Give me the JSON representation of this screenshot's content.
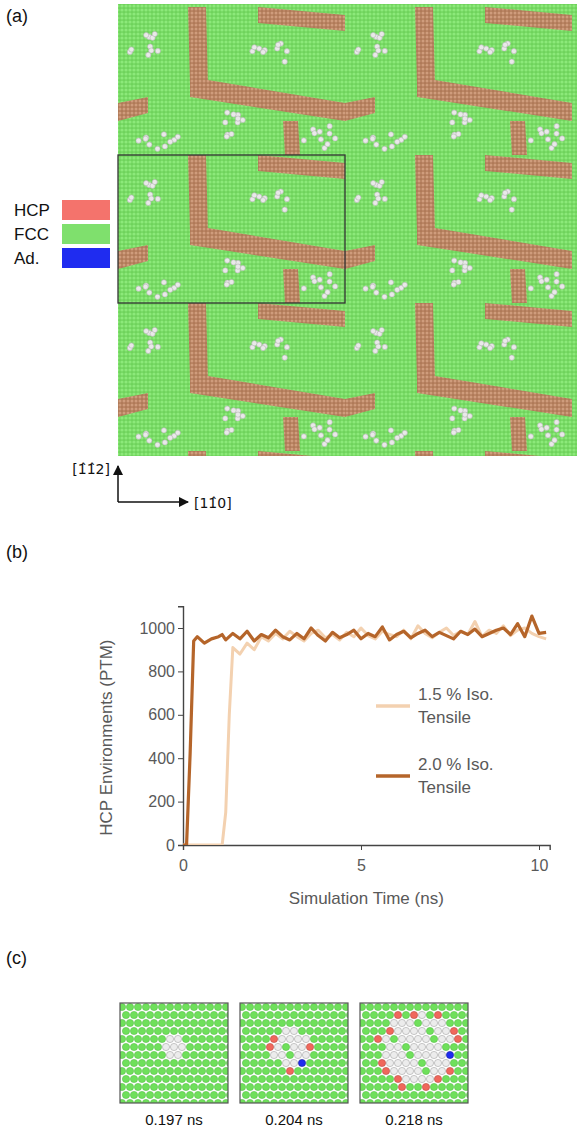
{
  "figure": {
    "panels": [
      "(a)",
      "(b)",
      "(c)"
    ],
    "legend_a": [
      {
        "label": "HCP",
        "color": "#f4736c"
      },
      {
        "label": "FCC",
        "color": "#7fe06d"
      },
      {
        "label": "Ad.",
        "color": "#1f2cf0"
      }
    ],
    "directions": {
      "vertical": "[1̂1̂2]",
      "horizontal": "[11̂0]"
    },
    "snapshots": [
      "0.197 ns",
      "0.204 ns",
      "0.218 ns"
    ]
  },
  "chart_data": {
    "type": "line",
    "xlabel": "Simulation Time (ns)",
    "ylabel": "HCP Environments (PTM)",
    "x": [
      0,
      0.1,
      0.2,
      0.3,
      0.4,
      0.6,
      0.8,
      1.0,
      1.1,
      1.2,
      1.3,
      1.4,
      1.6,
      1.8,
      2.0,
      2.2,
      2.4,
      2.6,
      2.8,
      3.0,
      3.2,
      3.4,
      3.6,
      3.8,
      4.0,
      4.2,
      4.4,
      4.6,
      4.8,
      5.0,
      5.2,
      5.4,
      5.6,
      5.8,
      6.0,
      6.2,
      6.4,
      6.6,
      6.8,
      7.0,
      7.2,
      7.4,
      7.6,
      7.8,
      8.0,
      8.2,
      8.4,
      8.6,
      8.8,
      9.0,
      9.2,
      9.4,
      9.6,
      9.8,
      10.0,
      10.2
    ],
    "series": [
      {
        "name": "1.5 % Iso. Tensile",
        "color": "#f3d1b0",
        "values": [
          0,
          0,
          0,
          0,
          0,
          0,
          0,
          0,
          0,
          150,
          600,
          910,
          880,
          930,
          900,
          960,
          940,
          975,
          950,
          985,
          960,
          940,
          975,
          990,
          955,
          970,
          945,
          980,
          960,
          1000,
          965,
          950,
          985,
          970,
          960,
          990,
          950,
          1010,
          975,
          955,
          980,
          1000,
          965,
          985,
          970,
          1030,
          960,
          990,
          975,
          1010,
          965,
          990,
          1000,
          975,
          960,
          950
        ]
      },
      {
        "name": "2.0 % Iso. Tensile",
        "color": "#b5652a",
        "values": [
          0,
          0,
          420,
          940,
          960,
          930,
          950,
          960,
          970,
          945,
          960,
          975,
          950,
          985,
          940,
          970,
          955,
          990,
          960,
          945,
          975,
          950,
          1000,
          965,
          940,
          980,
          955,
          970,
          990,
          950,
          975,
          960,
          1005,
          945,
          970,
          985,
          955,
          975,
          990,
          960,
          980,
          965,
          950,
          985,
          970,
          995,
          960,
          975,
          990,
          1000,
          970,
          1020,
          960,
          1055,
          975,
          980
        ]
      }
    ],
    "xlim": [
      0,
      10.3
    ],
    "ylim": [
      0,
      1100
    ],
    "xticks": [
      0,
      5,
      10
    ],
    "yticks": [
      0,
      200,
      400,
      600,
      800,
      1000
    ],
    "grid": false,
    "legend": "right"
  }
}
